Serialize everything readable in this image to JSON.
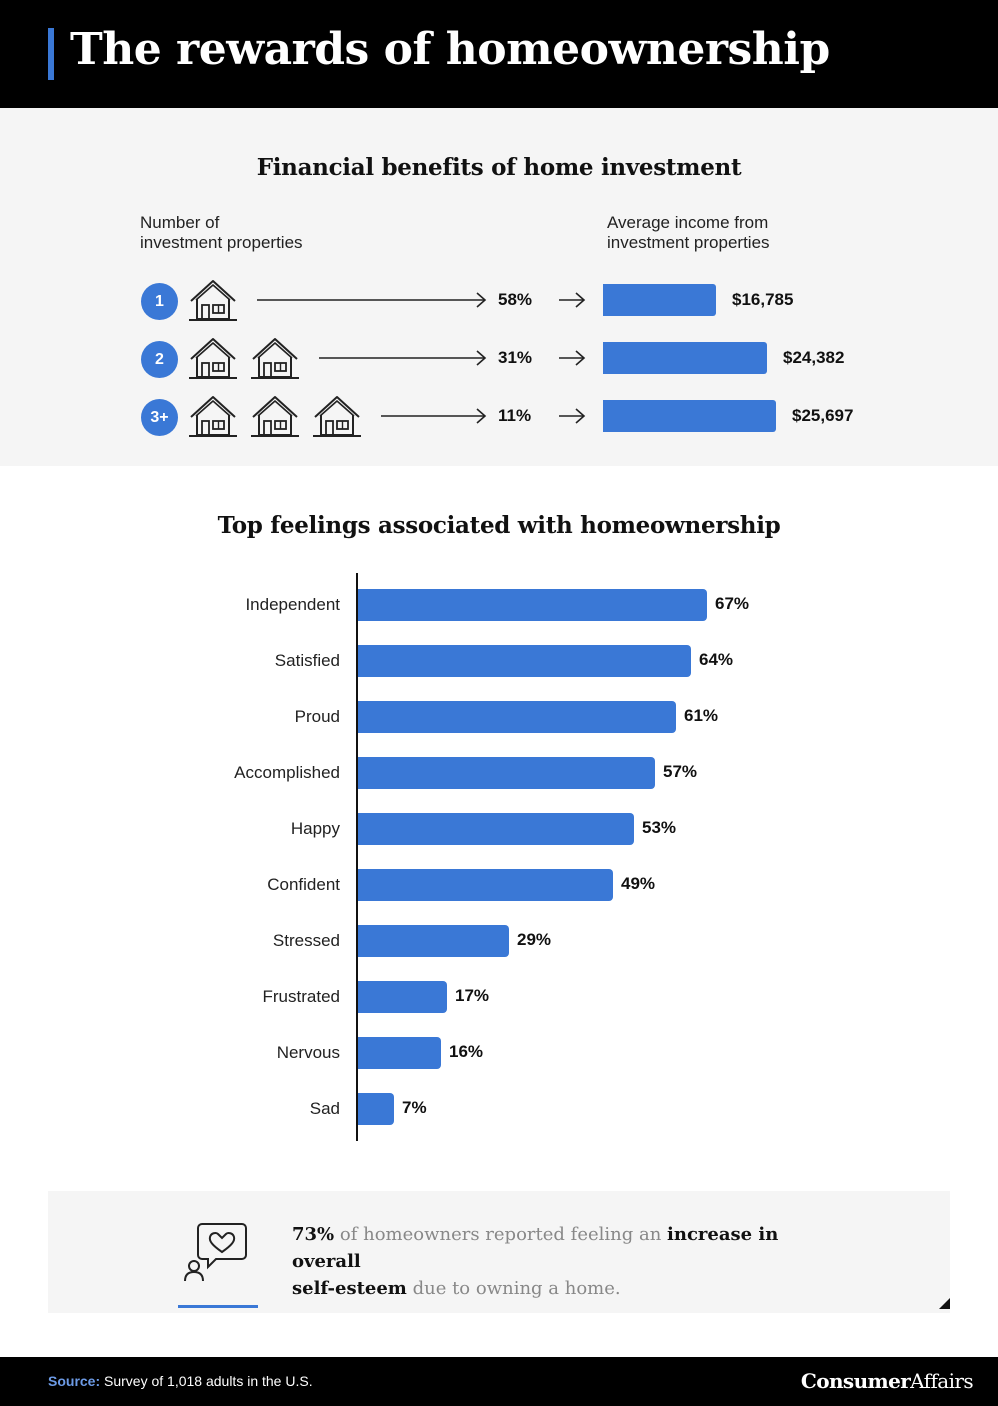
{
  "title": "The rewards of homeownership",
  "colors": {
    "accent": "#3a78d6",
    "header_bg": "#000000",
    "panel_bg": "#f5f5f5"
  },
  "investment": {
    "section_title": "Financial benefits of home investment",
    "col_left": [
      "Number of",
      "investment properties"
    ],
    "col_right": [
      "Average income from",
      "investment properties"
    ],
    "rows": [
      {
        "badge": "1",
        "houses": 1,
        "pct": "58%",
        "income": "$16,785"
      },
      {
        "badge": "2",
        "houses": 2,
        "pct": "31%",
        "income": "$24,382"
      },
      {
        "badge": "3+",
        "houses": 3,
        "pct": "11%",
        "income": "$25,697"
      }
    ]
  },
  "chart_data": [
    {
      "type": "bar",
      "orientation": "horizontal",
      "title": "Financial benefits of home investment",
      "categories": [
        "1",
        "2",
        "3+"
      ],
      "series": [
        {
          "name": "Number of investment properties",
          "values": [
            58,
            31,
            11
          ],
          "unit": "%"
        },
        {
          "name": "Average income from investment properties",
          "values": [
            16785,
            24382,
            25697
          ],
          "unit": "$"
        }
      ]
    },
    {
      "type": "bar",
      "orientation": "horizontal",
      "title": "Top feelings associated with homeownership",
      "categories": [
        "Independent",
        "Satisfied",
        "Proud",
        "Accomplished",
        "Happy",
        "Confident",
        "Stressed",
        "Frustrated",
        "Nervous",
        "Sad"
      ],
      "values": [
        67,
        64,
        61,
        57,
        53,
        49,
        29,
        17,
        16,
        7
      ],
      "labels": [
        "67%",
        "64%",
        "61%",
        "57%",
        "53%",
        "49%",
        "29%",
        "17%",
        "16%",
        "7%"
      ],
      "unit": "%",
      "xlim": [
        0,
        100
      ],
      "grid": false
    }
  ],
  "callout": {
    "stat": "73%",
    "text1": " of homeowners reported feeling an ",
    "bold1": "increase in overall",
    "bold2": "self-esteem",
    "text2": " due to owning a home.",
    "icon": "person-heart-speech-bubble-icon"
  },
  "footer": {
    "source_label": "Source:",
    "source_text": " Survey of 1,018 adults in the U.S.",
    "logo_bold": "Consumer",
    "logo_regular": "Affairs"
  }
}
